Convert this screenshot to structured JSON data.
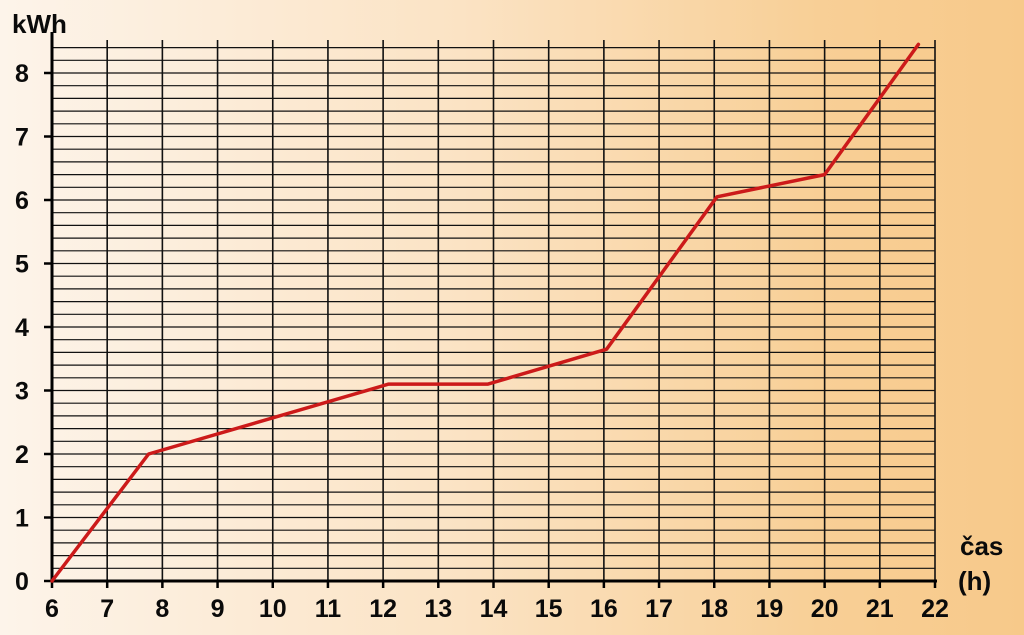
{
  "chart_data": {
    "type": "line",
    "xlabel_line1": "čas",
    "xlabel_line2": "(h)",
    "ylabel": "kWh",
    "xlim": [
      6,
      22
    ],
    "ylim": [
      0,
      8.4
    ],
    "x_ticks": [
      6,
      7,
      8,
      9,
      10,
      11,
      12,
      13,
      14,
      15,
      16,
      17,
      18,
      19,
      20,
      21,
      22
    ],
    "y_ticks": [
      0,
      1,
      2,
      3,
      4,
      5,
      6,
      7,
      8
    ],
    "grid": true,
    "colors": {
      "line": "#cc1a1a",
      "grid": "#111111",
      "text": "#0a0a0a"
    },
    "series": [
      {
        "x": [
          6,
          7.75,
          12.1,
          13.9,
          16.05,
          18.05,
          20,
          21.7
        ],
        "y": [
          0,
          2.0,
          3.1,
          3.1,
          3.65,
          6.05,
          6.4,
          8.45
        ]
      }
    ]
  }
}
